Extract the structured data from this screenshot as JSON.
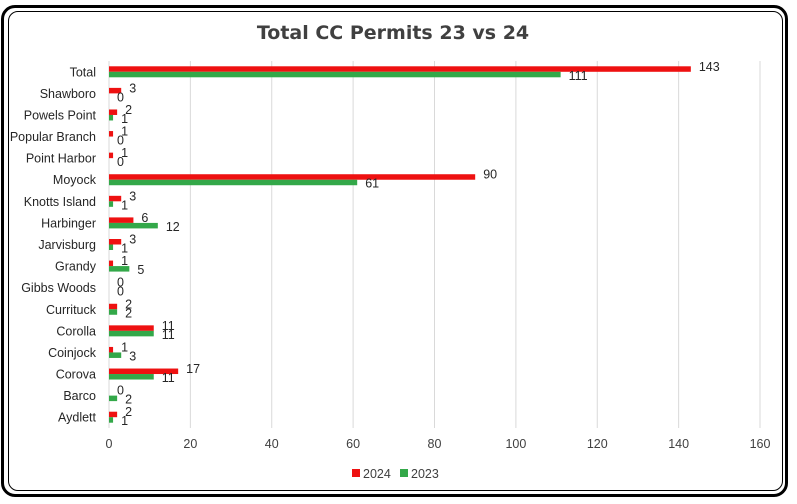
{
  "chart_data": {
    "type": "bar",
    "orientation": "horizontal",
    "title": "Total CC Permits 23 vs 24",
    "categories": [
      "Total",
      "Shawboro",
      "Powels Point",
      "Popular Branch",
      "Point Harbor",
      "Moyock",
      "Knotts Island",
      "Harbinger",
      "Jarvisburg",
      "Grandy",
      "Gibbs Woods",
      "Currituck",
      "Corolla",
      "Coinjock",
      "Corova",
      "Barco",
      "Aydlett"
    ],
    "series": [
      {
        "name": "2024",
        "color": "#ee1111",
        "values": [
          143,
          3,
          2,
          1,
          1,
          90,
          3,
          6,
          3,
          1,
          0,
          2,
          11,
          1,
          17,
          0,
          2
        ]
      },
      {
        "name": "2023",
        "color": "#33a849",
        "values": [
          111,
          0,
          1,
          0,
          0,
          61,
          1,
          12,
          1,
          5,
          0,
          2,
          11,
          3,
          11,
          2,
          1
        ]
      }
    ],
    "xlim": [
      0,
      160
    ],
    "xticks": [
      0,
      20,
      40,
      60,
      80,
      100,
      120,
      140,
      160
    ],
    "xlabel": "",
    "ylabel": "",
    "grid": true,
    "legend": "bottom",
    "data_labels": true
  }
}
